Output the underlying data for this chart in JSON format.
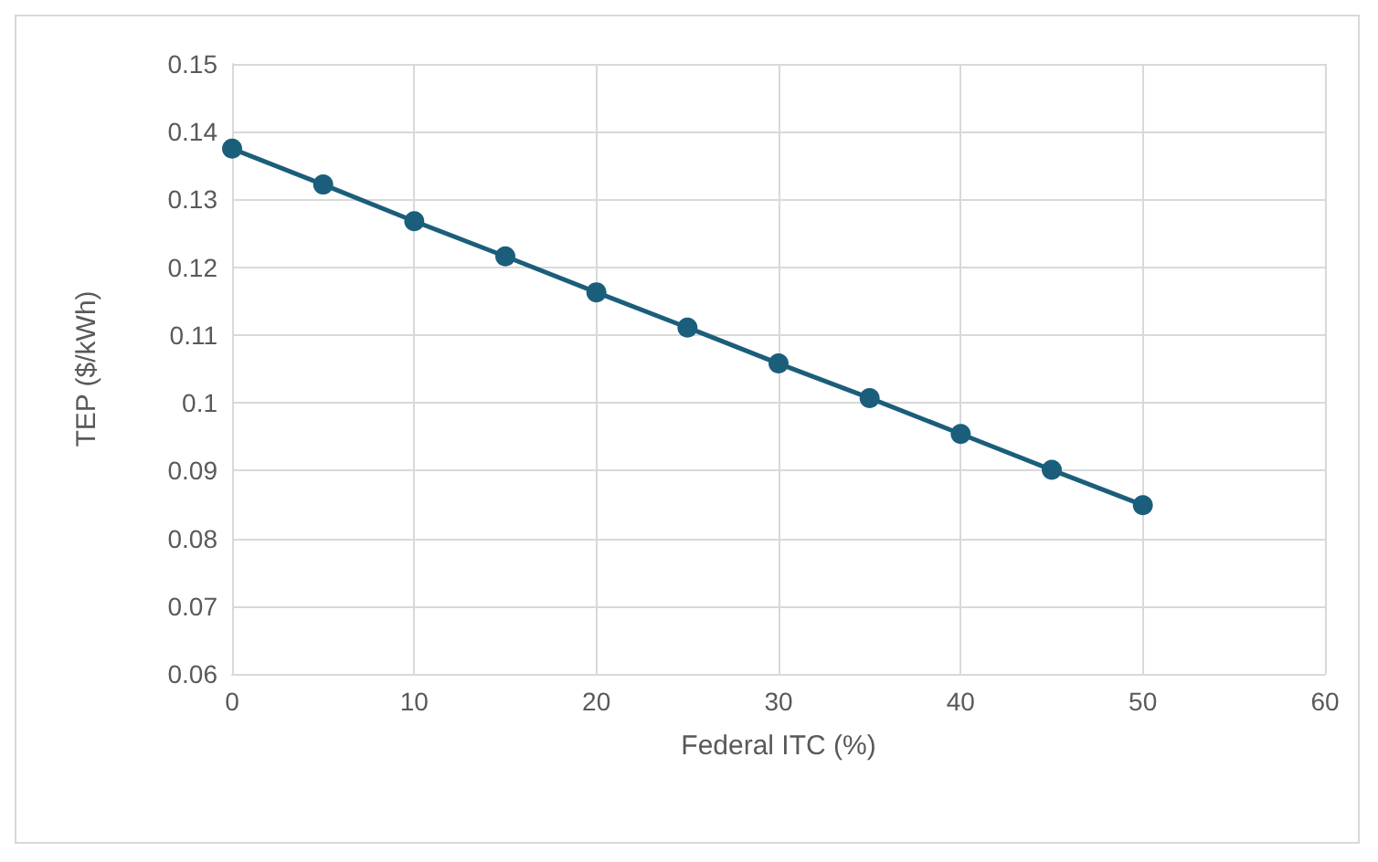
{
  "chart_data": {
    "type": "line",
    "xlabel": "Federal ITC (%)",
    "ylabel": "TEP ($/kWh)",
    "x": [
      0,
      5,
      10,
      15,
      20,
      25,
      30,
      35,
      40,
      45,
      50
    ],
    "series": [
      {
        "color": "#1b5e7b",
        "values": [
          0.1375,
          0.1322,
          0.1268,
          0.1216,
          0.1163,
          0.1111,
          0.1058,
          0.1007,
          0.0954,
          0.0901,
          0.0849
        ]
      }
    ],
    "xlim": [
      0,
      60
    ],
    "xticks": [
      0,
      10,
      20,
      30,
      40,
      50,
      60
    ],
    "ylim": [
      0.06,
      0.15
    ],
    "yticks": [
      0.06,
      0.07,
      0.08,
      0.09,
      0.1,
      0.11,
      0.12,
      0.13,
      0.14,
      0.15
    ],
    "grid": true,
    "marker": "circle",
    "line_style": "solid"
  }
}
